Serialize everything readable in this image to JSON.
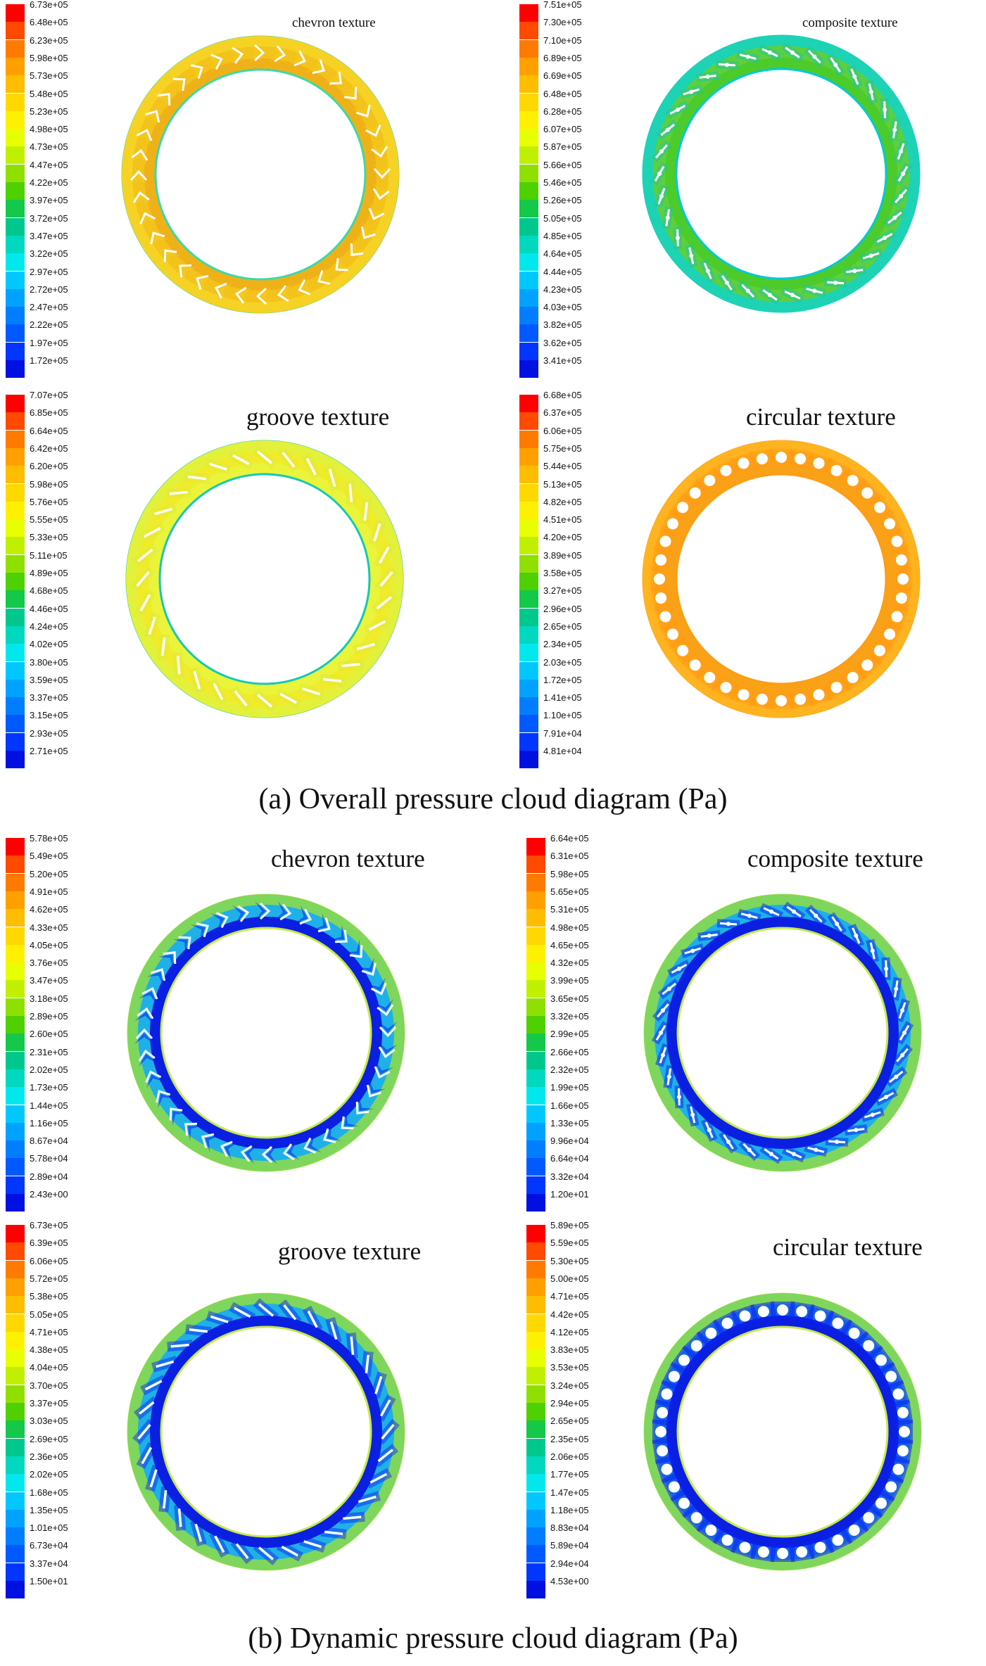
{
  "figure": {
    "caption_a": "(a) Overall pressure cloud diagram (Pa)",
    "caption_b": "(b) Dynamic pressure cloud diagram (Pa)"
  },
  "colors": {
    "colormap": [
      "#ff0000",
      "#ff4a00",
      "#ff7a00",
      "#ffa000",
      "#ffbd00",
      "#ffd800",
      "#fff000",
      "#e8ff00",
      "#c0f000",
      "#8fe000",
      "#4fd000",
      "#14c84a",
      "#00c88c",
      "#00d8c0",
      "#00e8ee",
      "#00c8ff",
      "#00a2ff",
      "#007eff",
      "#005aff",
      "#0036ff",
      "#0010e0"
    ],
    "overall_chevron": {
      "outer": "#f6d225",
      "mid": "#f3c21b",
      "inner": "#efb118",
      "groove": "#f5cf1a",
      "edge": "#3cd9a8",
      "mark": "#ffffff"
    },
    "overall_composite": {
      "outer": "#1ed3b3",
      "mid": "#5fd03a",
      "inner": "#4ccb2a",
      "groove": "#21c4a8",
      "edge": "#00c9d8",
      "mark": "#ffffff"
    },
    "overall_groove": {
      "outer": "#e3f13b",
      "mid": "#f1ec2a",
      "inner": "#eaf43a",
      "groove": "#dfe83a",
      "edge": "#14c8b8",
      "mark": "#ffffff"
    },
    "overall_circular": {
      "outer": "#ffb31e",
      "mid": "#fca71a",
      "inner": "#f9a218",
      "groove": "#ff9d15",
      "edge": "#ff9d15",
      "mark": "#ffffff"
    },
    "dynamic": {
      "outer": "#7fd65d",
      "mid": "#1fb0e8",
      "inner": "#0b1fe0",
      "groove": "#0b20f0",
      "edge": "#c6e94a",
      "mark": "#ffffff"
    }
  },
  "panels": [
    {
      "title": "chevron texture",
      "texture": "chevron",
      "scheme": "overall_chevron",
      "legend": [
        "6.73e+05",
        "6.48e+05",
        "6.23e+05",
        "5.98e+05",
        "5.73e+05",
        "5.48e+05",
        "5.23e+05",
        "4.98e+05",
        "4.73e+05",
        "4.47e+05",
        "4.22e+05",
        "3.97e+05",
        "3.72e+05",
        "3.47e+05",
        "3.22e+05",
        "2.97e+05",
        "2.72e+05",
        "2.47e+05",
        "2.22e+05",
        "1.97e+05",
        "1.72e+05"
      ]
    },
    {
      "title": "composite texture",
      "texture": "composite",
      "scheme": "overall_composite",
      "legend": [
        "7.51e+05",
        "7.30e+05",
        "7.10e+05",
        "6.89e+05",
        "6.69e+05",
        "6.48e+05",
        "6.28e+05",
        "6.07e+05",
        "5.87e+05",
        "5.66e+05",
        "5.46e+05",
        "5.26e+05",
        "5.05e+05",
        "4.85e+05",
        "4.64e+05",
        "4.44e+05",
        "4.23e+05",
        "4.03e+05",
        "3.82e+05",
        "3.62e+05",
        "3.41e+05"
      ]
    },
    {
      "title": "groove texture",
      "texture": "groove",
      "scheme": "overall_groove",
      "legend": [
        "7.07e+05",
        "6.85e+05",
        "6.64e+05",
        "6.42e+05",
        "6.20e+05",
        "5.98e+05",
        "5.76e+05",
        "5.55e+05",
        "5.33e+05",
        "5.11e+05",
        "4.89e+05",
        "4.68e+05",
        "4.46e+05",
        "4.24e+05",
        "4.02e+05",
        "3.80e+05",
        "3.59e+05",
        "3.37e+05",
        "3.15e+05",
        "2.93e+05",
        "2.71e+05"
      ]
    },
    {
      "title": "circular texture",
      "texture": "circular",
      "scheme": "overall_circular",
      "legend": [
        "6.68e+05",
        "6.37e+05",
        "6.06e+05",
        "5.75e+05",
        "5.44e+05",
        "5.13e+05",
        "4.82e+05",
        "4.51e+05",
        "4.20e+05",
        "3.89e+05",
        "3.58e+05",
        "3.27e+05",
        "2.96e+05",
        "2.65e+05",
        "2.34e+05",
        "2.03e+05",
        "1.72e+05",
        "1.41e+05",
        "1.10e+05",
        "7.91e+04",
        "4.81e+04"
      ]
    },
    {
      "title": "chevron texture",
      "texture": "chevron",
      "scheme": "dynamic",
      "legend": [
        "5.78e+05",
        "5.49e+05",
        "5.20e+05",
        "4.91e+05",
        "4.62e+05",
        "4.33e+05",
        "4.05e+05",
        "3.76e+05",
        "3.47e+05",
        "3.18e+05",
        "2.89e+05",
        "2.60e+05",
        "2.31e+05",
        "2.02e+05",
        "1.73e+05",
        "1.44e+05",
        "1.16e+05",
        "8.67e+04",
        "5.78e+04",
        "2.89e+04",
        "2.43e+00"
      ]
    },
    {
      "title": "composite texture",
      "texture": "composite",
      "scheme": "dynamic",
      "legend": [
        "6.64e+05",
        "6.31e+05",
        "5.98e+05",
        "5.65e+05",
        "5.31e+05",
        "4.98e+05",
        "4.65e+05",
        "4.32e+05",
        "3.99e+05",
        "3.65e+05",
        "3.32e+05",
        "2.99e+05",
        "2.66e+05",
        "2.32e+05",
        "1.99e+05",
        "1.66e+05",
        "1.33e+05",
        "9.96e+04",
        "6.64e+04",
        "3.32e+04",
        "1.20e+01"
      ]
    },
    {
      "title": "groove texture",
      "texture": "groove",
      "scheme": "dynamic",
      "legend": [
        "6.73e+05",
        "6.39e+05",
        "6.06e+05",
        "5.72e+05",
        "5.38e+05",
        "5.05e+05",
        "4.71e+05",
        "4.38e+05",
        "4.04e+05",
        "3.70e+05",
        "3.37e+05",
        "3.03e+05",
        "2.69e+05",
        "2.36e+05",
        "2.02e+05",
        "1.68e+05",
        "1.35e+05",
        "1.01e+05",
        "6.73e+04",
        "3.37e+04",
        "1.50e+01"
      ]
    },
    {
      "title": "circular texture",
      "texture": "circular",
      "scheme": "dynamic",
      "legend": [
        "5.89e+05",
        "5.59e+05",
        "5.30e+05",
        "5.00e+05",
        "4.71e+05",
        "4.42e+05",
        "4.12e+05",
        "3.83e+05",
        "3.53e+05",
        "3.24e+05",
        "2.94e+05",
        "2.65e+05",
        "2.35e+05",
        "2.06e+05",
        "1.77e+05",
        "1.47e+05",
        "1.18e+05",
        "8.83e+04",
        "5.89e+04",
        "2.94e+04",
        "4.53e+00"
      ]
    }
  ]
}
